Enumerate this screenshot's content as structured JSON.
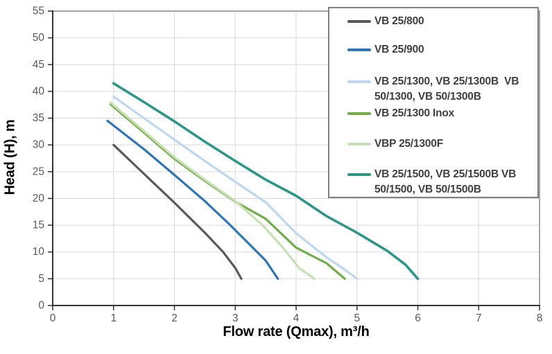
{
  "chart_data": {
    "type": "line",
    "title": "",
    "xlabel": "Flow rate (Qmax), m³/h",
    "ylabel": "Head (H), m",
    "xlim": [
      0,
      8
    ],
    "ylim": [
      0,
      55
    ],
    "xticks": [
      0,
      1,
      2,
      3,
      4,
      5,
      6,
      7,
      8
    ],
    "yticks": [
      0,
      5,
      10,
      15,
      20,
      25,
      30,
      35,
      40,
      45,
      50,
      55
    ],
    "grid": true,
    "legend_position": "top-right",
    "series": [
      {
        "name": "VB 25/800",
        "color": "#595959",
        "points": [
          [
            1.0,
            30
          ],
          [
            1.5,
            24.6
          ],
          [
            2.0,
            19.2
          ],
          [
            2.5,
            13.6
          ],
          [
            2.8,
            10
          ],
          [
            3.0,
            7
          ],
          [
            3.1,
            5
          ]
        ]
      },
      {
        "name": "VB 25/900",
        "color": "#2e75b6",
        "points": [
          [
            0.9,
            34.5
          ],
          [
            1.5,
            29.2
          ],
          [
            2.0,
            24.4
          ],
          [
            2.5,
            19.5
          ],
          [
            2.9,
            15.2
          ],
          [
            3.2,
            11.8
          ],
          [
            3.5,
            8.4
          ],
          [
            3.7,
            5
          ]
        ]
      },
      {
        "name": "VB 25/1300, VB 25/1300B  VB 50/1300, VB 50/1300B",
        "color": "#bdd7ee",
        "points": [
          [
            1.0,
            39
          ],
          [
            1.5,
            35
          ],
          [
            2.0,
            31
          ],
          [
            2.5,
            27
          ],
          [
            3.0,
            23.1
          ],
          [
            3.5,
            19.3
          ],
          [
            4.0,
            13.5
          ],
          [
            4.5,
            9
          ],
          [
            4.8,
            6.7
          ],
          [
            5.0,
            5
          ]
        ]
      },
      {
        "name": "VB 25/1300 Inox",
        "color": "#70ad47",
        "points": [
          [
            0.95,
            37.6
          ],
          [
            1.5,
            32.3
          ],
          [
            2.0,
            27.4
          ],
          [
            2.5,
            23.3
          ],
          [
            3.0,
            19.4
          ],
          [
            3.5,
            16.2
          ],
          [
            4.0,
            10.8
          ],
          [
            4.5,
            7.9
          ],
          [
            4.8,
            5
          ]
        ]
      },
      {
        "name": "VBP 25/1300F",
        "color": "#c6e0b4",
        "points": [
          [
            0.95,
            37.9
          ],
          [
            1.5,
            32.6
          ],
          [
            2.0,
            27.7
          ],
          [
            2.5,
            23.5
          ],
          [
            3.0,
            19.5
          ],
          [
            3.45,
            15
          ],
          [
            3.8,
            10.6
          ],
          [
            4.05,
            7
          ],
          [
            4.2,
            5.8
          ],
          [
            4.3,
            5
          ]
        ]
      },
      {
        "name": "VB 25/1500, VB 25/1500B VB 50/1500, VB 50/1500B",
        "color": "#2e9688",
        "points": [
          [
            1.0,
            41.5
          ],
          [
            1.5,
            38
          ],
          [
            2.0,
            34.4
          ],
          [
            2.5,
            30.6
          ],
          [
            3.0,
            27
          ],
          [
            3.5,
            23.5
          ],
          [
            4.0,
            20.5
          ],
          [
            4.5,
            16.7
          ],
          [
            5.0,
            13.6
          ],
          [
            5.5,
            10.2
          ],
          [
            5.8,
            7.6
          ],
          [
            6.0,
            5
          ]
        ]
      }
    ]
  },
  "colors": {
    "background": "#ffffff",
    "grid": "#d9d9d9",
    "axis": "#333333",
    "frame": "#a6a6a6",
    "tick_text": "#595959",
    "axis_title_text": "#000000",
    "legend_border": "#808080",
    "legend_text": "#3f3f3f"
  }
}
